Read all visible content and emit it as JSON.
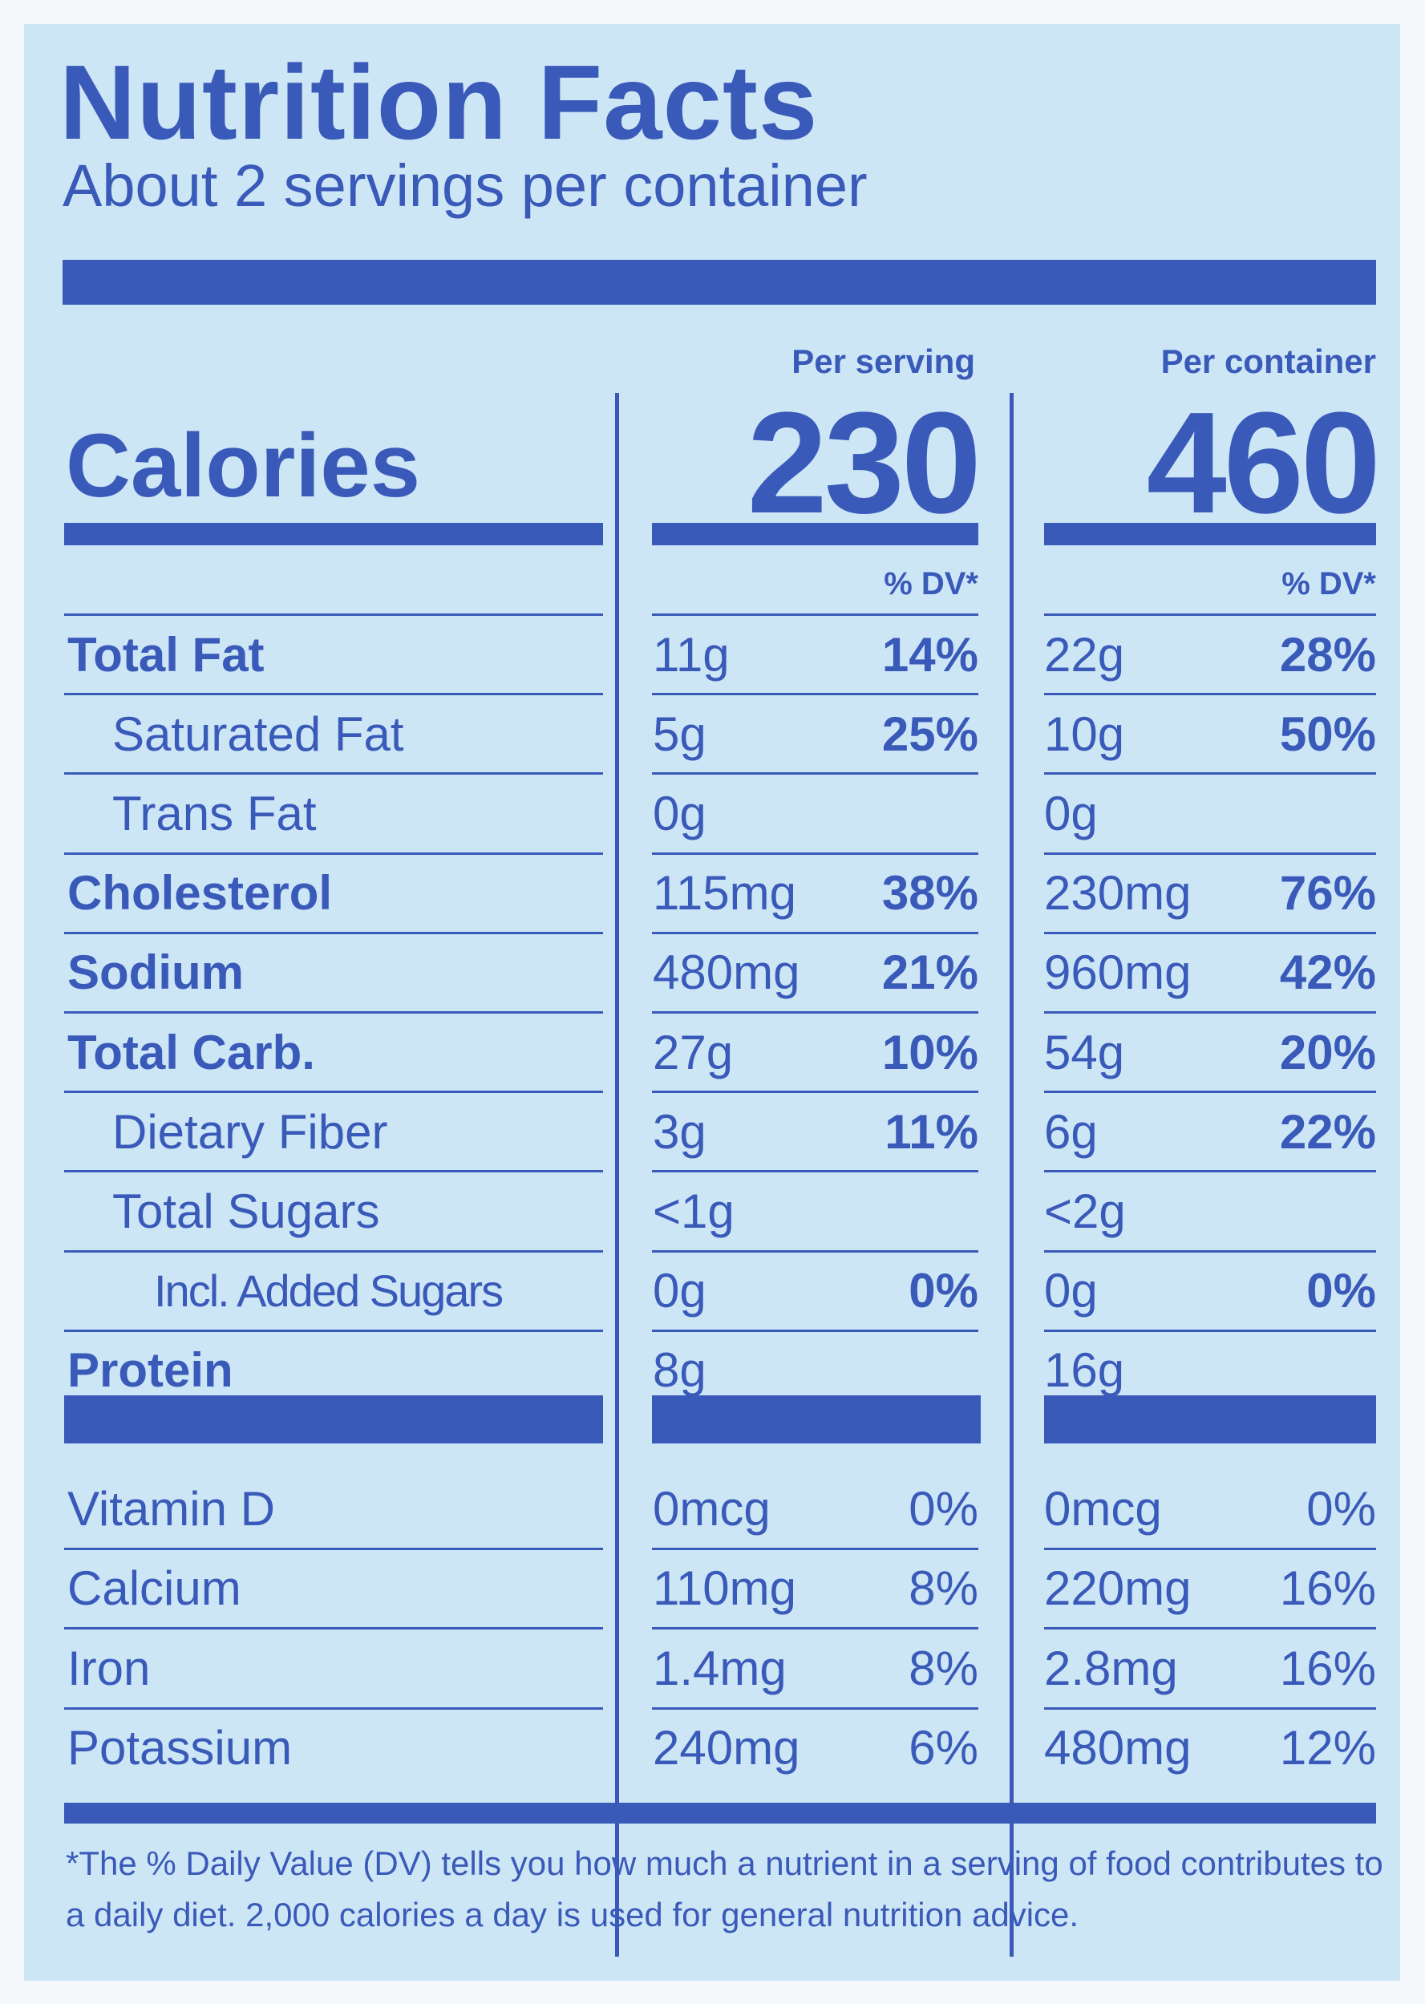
{
  "title": "Nutrition Facts",
  "servings": "About 2 servings per container",
  "columns": {
    "serving": {
      "header": "Per serving",
      "calories": "230",
      "dv_header": "% DV*"
    },
    "container": {
      "header": "Per container",
      "calories": "460",
      "dv_header": "% DV*"
    }
  },
  "calories_label": "Calories",
  "nutrients": [
    {
      "name": "Total Fat",
      "bold": true,
      "indent": 0,
      "serving_amount": "11g",
      "serving_dv": "14%",
      "container_amount": "22g",
      "container_dv": "28%"
    },
    {
      "name": "Saturated Fat",
      "bold": false,
      "indent": 1,
      "serving_amount": "5g",
      "serving_dv": "25%",
      "container_amount": "10g",
      "container_dv": "50%"
    },
    {
      "name": "Trans Fat",
      "bold": false,
      "indent": 1,
      "serving_amount": "0g",
      "serving_dv": "",
      "container_amount": "0g",
      "container_dv": ""
    },
    {
      "name": "Cholesterol",
      "bold": true,
      "indent": 0,
      "serving_amount": "115mg",
      "serving_dv": "38%",
      "container_amount": "230mg",
      "container_dv": "76%"
    },
    {
      "name": "Sodium",
      "bold": true,
      "indent": 0,
      "serving_amount": "480mg",
      "serving_dv": "21%",
      "container_amount": "960mg",
      "container_dv": "42%"
    },
    {
      "name": "Total Carb.",
      "bold": true,
      "indent": 0,
      "serving_amount": "27g",
      "serving_dv": "10%",
      "container_amount": "54g",
      "container_dv": "20%"
    },
    {
      "name": "Dietary Fiber",
      "bold": false,
      "indent": 1,
      "serving_amount": "3g",
      "serving_dv": "11%",
      "container_amount": "6g",
      "container_dv": "22%"
    },
    {
      "name": "Total Sugars",
      "bold": false,
      "indent": 1,
      "serving_amount": "<1g",
      "serving_dv": "",
      "container_amount": "<2g",
      "container_dv": ""
    },
    {
      "name": "Incl. Added Sugars",
      "bold": false,
      "indent": 2,
      "serving_amount": "0g",
      "serving_dv": "0%",
      "container_amount": "0g",
      "container_dv": "0%"
    },
    {
      "name": "Protein",
      "bold": true,
      "indent": 0,
      "serving_amount": "8g",
      "serving_dv": "",
      "container_amount": "16g",
      "container_dv": ""
    }
  ],
  "vitamins": [
    {
      "name": "Vitamin D",
      "serving_amount": "0mcg",
      "serving_dv": "0%",
      "container_amount": "0mcg",
      "container_dv": "0%"
    },
    {
      "name": "Calcium",
      "serving_amount": "110mg",
      "serving_dv": "8%",
      "container_amount": "220mg",
      "container_dv": "16%"
    },
    {
      "name": "Iron",
      "serving_amount": "1.4mg",
      "serving_dv": "8%",
      "container_amount": "2.8mg",
      "container_dv": "16%"
    },
    {
      "name": "Potassium",
      "serving_amount": "240mg",
      "serving_dv": "6%",
      "container_amount": "480mg",
      "container_dv": "12%"
    }
  ],
  "footnote": "*The % Daily Value (DV) tells you how much a nutrient in a serving of food contributes to a daily diet. 2,000 calories a day is used for general nutrition advice.",
  "colors": {
    "ink": "#3a5ab9",
    "background": "#cde6f6"
  }
}
